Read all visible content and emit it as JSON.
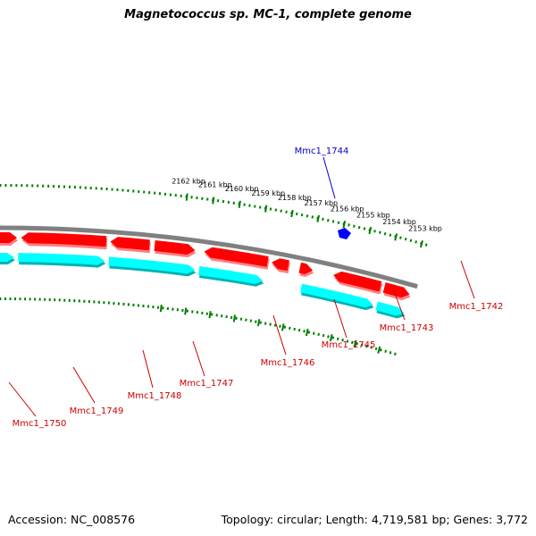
{
  "title": "Magnetococcus sp. MC-1, complete genome",
  "accession": "Accession: NC_008576",
  "topology": "Topology: circular; Length: 4,719,581 bp; Genes: 3,772",
  "colors": {
    "backbone": "#808080",
    "forward_gene": "#ff0000",
    "forward_gene_shadow": "#ff8080",
    "reverse_gene": "#00ffff",
    "reverse_gene_shadow": "#00b3b3",
    "highlight_gene": "#0000ff",
    "tick": "#008000",
    "gene_label": "#cc0000",
    "highlight_label": "#0000cc"
  },
  "kbp_labels": [
    "2153 kbp",
    "2154 kbp",
    "2155 kbp",
    "2156 kbp",
    "2157 kbp",
    "2158 kbp",
    "2159 kbp",
    "2160 kbp",
    "2161 kbp",
    "2162 kbp"
  ],
  "gene_labels": [
    {
      "name": "Mmc1_1744",
      "strand": "highlight"
    },
    {
      "name": "Mmc1_1742",
      "strand": "forward"
    },
    {
      "name": "Mmc1_1743",
      "strand": "forward"
    },
    {
      "name": "Mmc1_1745",
      "strand": "forward"
    },
    {
      "name": "Mmc1_1746",
      "strand": "forward"
    },
    {
      "name": "Mmc1_1747",
      "strand": "forward"
    },
    {
      "name": "Mmc1_1748",
      "strand": "forward"
    },
    {
      "name": "Mmc1_1749",
      "strand": "forward"
    },
    {
      "name": "Mmc1_1750",
      "strand": "forward"
    }
  ]
}
